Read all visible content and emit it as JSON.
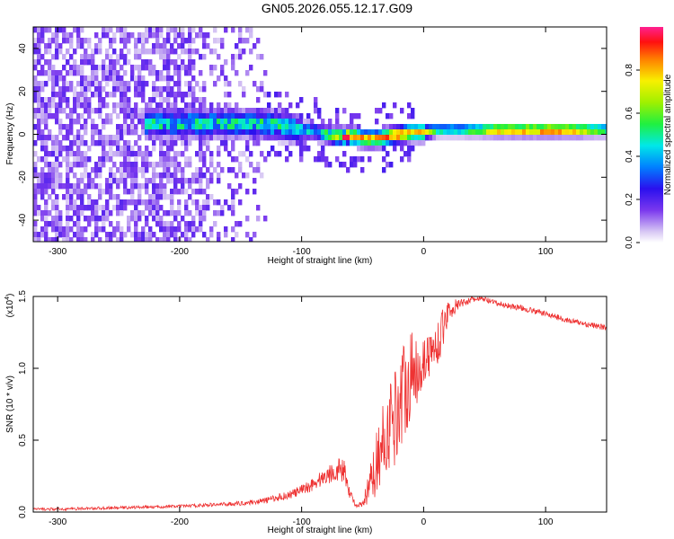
{
  "title": "GN05.2026.055.12.17.G09",
  "chart_data": [
    {
      "type": "heatmap",
      "name": "spectrogram",
      "xlabel": "Height of straight line (km)",
      "ylabel": "Frequency (Hz)",
      "xlim": [
        -320,
        150
      ],
      "ylim": [
        -50,
        50
      ],
      "xticks": [
        -300,
        -200,
        -100,
        0,
        100
      ],
      "xtick_labels": [
        "-300",
        "-200",
        "-100",
        "0",
        "100"
      ],
      "yticks": [
        -40,
        -20,
        0,
        20,
        40
      ],
      "ytick_labels": [
        "-40",
        "-20",
        "0",
        "20",
        "40"
      ],
      "ridge": {
        "x": [
          -140,
          -130,
          -120,
          -110,
          -100,
          -90,
          -80,
          -70,
          -60,
          -50,
          -40,
          -30,
          -20,
          -10,
          0,
          10,
          30,
          60,
          90,
          120,
          150
        ],
        "freq": [
          5,
          5,
          4,
          3,
          2,
          1,
          0,
          -1,
          -1,
          -2,
          -2,
          -1,
          0,
          1,
          1,
          2,
          2,
          2,
          2,
          2,
          2
        ],
        "amplitude": [
          0.45,
          0.5,
          0.45,
          0.45,
          0.4,
          0.4,
          0.5,
          0.75,
          0.85,
          0.8,
          0.8,
          0.85,
          0.9,
          0.8,
          0.85,
          0.55,
          0.55,
          0.9,
          0.95,
          0.95,
          0.6
        ]
      },
      "noise_region": {
        "x_start": -320,
        "x_end": -130,
        "amplitude": 0.15
      }
    },
    {
      "type": "colorbar",
      "name": "amplitude-colorbar",
      "label": "Normalized spectral amplitude",
      "range": [
        0,
        1
      ],
      "ticks": [
        0.0,
        0.2,
        0.4,
        0.6,
        0.8
      ],
      "tick_labels": [
        "0.0",
        "0.2",
        "0.4",
        "0.6",
        "0.8"
      ]
    },
    {
      "type": "line",
      "name": "snr-series",
      "xlabel": "Height of straight line (km)",
      "ylabel": "SNR (10 * v/v)",
      "scale_label": "(x10",
      "scale_exp": "4",
      "scale_close": ")",
      "xlim": [
        -320,
        150
      ],
      "ylim": [
        0,
        1.5
      ],
      "xticks": [
        -300,
        -200,
        -100,
        0,
        100
      ],
      "xtick_labels": [
        "-300",
        "-200",
        "-100",
        "0",
        "100"
      ],
      "yticks": [
        0.0,
        0.5,
        1.0,
        1.5
      ],
      "ytick_labels": [
        "0.0",
        "0.5",
        "1.0",
        "1.5"
      ],
      "color": "#ee3333",
      "x": [
        -320,
        -300,
        -250,
        -200,
        -150,
        -130,
        -110,
        -100,
        -90,
        -80,
        -70,
        -65,
        -60,
        -55,
        -50,
        -45,
        -40,
        -35,
        -30,
        -25,
        -20,
        -15,
        -10,
        -5,
        0,
        5,
        10,
        15,
        20,
        30,
        40,
        50,
        60,
        80,
        100,
        120,
        150
      ],
      "y": [
        0.02,
        0.02,
        0.03,
        0.04,
        0.06,
        0.08,
        0.12,
        0.15,
        0.2,
        0.25,
        0.3,
        0.28,
        0.12,
        0.04,
        0.05,
        0.15,
        0.3,
        0.45,
        0.55,
        0.65,
        0.75,
        0.9,
        0.95,
        1.0,
        1.05,
        1.1,
        1.15,
        1.25,
        1.4,
        1.45,
        1.48,
        1.48,
        1.45,
        1.42,
        1.38,
        1.33,
        1.28
      ],
      "jitter": [
        0.01,
        0.01,
        0.01,
        0.01,
        0.015,
        0.02,
        0.03,
        0.04,
        0.05,
        0.06,
        0.08,
        0.08,
        0.04,
        0.01,
        0.03,
        0.12,
        0.2,
        0.25,
        0.3,
        0.35,
        0.35,
        0.35,
        0.3,
        0.25,
        0.2,
        0.15,
        0.15,
        0.15,
        0.08,
        0.03,
        0.02,
        0.02,
        0.02,
        0.02,
        0.02,
        0.02,
        0.02
      ]
    }
  ]
}
